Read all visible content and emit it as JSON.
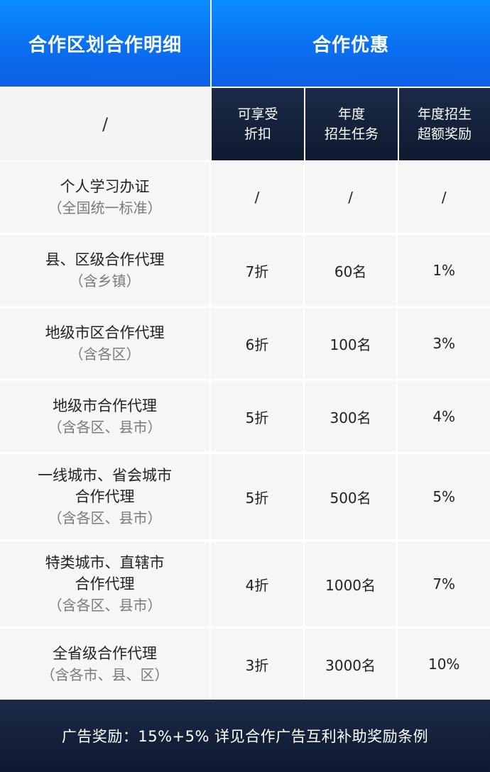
{
  "header": {
    "left_title": "合作区划合作明细",
    "right_title": "合作优惠"
  },
  "subheader": {
    "left": "/",
    "col1": [
      "可享受",
      "折扣"
    ],
    "col2": [
      "年度",
      "招生任务"
    ],
    "col3": [
      "年度招生",
      "超额奖励"
    ]
  },
  "rows": [
    {
      "name": [
        "个人学习办证"
      ],
      "sub": "（全国统一标准）",
      "discount": "/",
      "quota": "/",
      "bonus": "/"
    },
    {
      "name": [
        "县、区级合作代理"
      ],
      "sub": "（含乡镇）",
      "discount": "7折",
      "quota": "60名",
      "bonus": "1%"
    },
    {
      "name": [
        "地级市区合作代理"
      ],
      "sub": "（含各区）",
      "discount": "6折",
      "quota": "100名",
      "bonus": "3%"
    },
    {
      "name": [
        "地级市合作代理"
      ],
      "sub": "（含各区、县市）",
      "discount": "5折",
      "quota": "300名",
      "bonus": "4%"
    },
    {
      "name": [
        "一线城市、省会城市",
        "合作代理"
      ],
      "sub": "（含各区、县市）",
      "discount": "5折",
      "quota": "500名",
      "bonus": "5%"
    },
    {
      "name": [
        "特类城市、直辖市",
        "合作代理"
      ],
      "sub": "（含各区、县市）",
      "discount": "4折",
      "quota": "1000名",
      "bonus": "7%"
    },
    {
      "name": [
        "全省级合作代理"
      ],
      "sub": "（含各市、县、区）",
      "discount": "3折",
      "quota": "3000名",
      "bonus": "10%"
    }
  ],
  "footer": {
    "text": "广告奖励：15%+5% 详见合作广告互利补助奖励条例"
  },
  "colors": {
    "header_blue": "#0a7ff5",
    "dark_navy": "#14213c",
    "cell_bg": "#f6f6f6",
    "sub_text": "#7a7a7a"
  }
}
